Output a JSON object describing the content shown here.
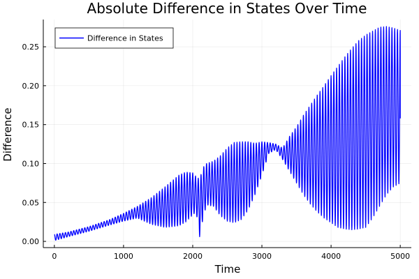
{
  "chart_data": {
    "type": "line",
    "title": "Absolute Difference in States Over Time",
    "xlabel": "Time",
    "ylabel": "Difference",
    "xlim": [
      -160,
      5160
    ],
    "ylim": [
      -0.008,
      0.285
    ],
    "xticks": [
      0,
      1000,
      2000,
      3000,
      4000,
      5000
    ],
    "xtick_labels": [
      "0",
      "1000",
      "2000",
      "3000",
      "4000",
      "5000"
    ],
    "yticks": [
      0.0,
      0.05,
      0.1,
      0.15,
      0.2,
      0.25
    ],
    "ytick_labels": [
      "0.00",
      "0.05",
      "0.10",
      "0.15",
      "0.20",
      "0.25"
    ],
    "grid": true,
    "legend_position": "top-left",
    "oscillation_period": 40,
    "series": [
      {
        "name": "Difference in States",
        "color": "#0000ff",
        "upper_envelope": {
          "x": [
            0,
            200,
            500,
            800,
            1000,
            1200,
            1400,
            1600,
            1800,
            1900,
            2000,
            2050,
            2100,
            2150,
            2200,
            2300,
            2400,
            2500,
            2600,
            2700,
            2800,
            2900,
            3000,
            3100,
            3200,
            3300,
            3400,
            3500,
            3600,
            3700,
            3800,
            3900,
            4000,
            4100,
            4200,
            4300,
            4400,
            4500,
            4600,
            4700,
            4800,
            4900,
            5000
          ],
          "y": [
            0.009,
            0.012,
            0.019,
            0.028,
            0.036,
            0.045,
            0.056,
            0.07,
            0.085,
            0.089,
            0.088,
            0.083,
            0.08,
            0.095,
            0.1,
            0.103,
            0.11,
            0.12,
            0.127,
            0.128,
            0.128,
            0.126,
            0.128,
            0.127,
            0.125,
            0.12,
            0.135,
            0.147,
            0.162,
            0.175,
            0.188,
            0.2,
            0.213,
            0.225,
            0.237,
            0.248,
            0.258,
            0.265,
            0.27,
            0.275,
            0.276,
            0.274,
            0.271
          ]
        },
        "lower_envelope": {
          "x": [
            0,
            200,
            500,
            800,
            1000,
            1200,
            1400,
            1600,
            1800,
            1900,
            2000,
            2050,
            2100,
            2150,
            2200,
            2300,
            2400,
            2500,
            2600,
            2700,
            2800,
            2900,
            3000,
            3100,
            3200,
            3300,
            3400,
            3500,
            3600,
            3700,
            3800,
            3900,
            4000,
            4100,
            4200,
            4300,
            4400,
            4500,
            4600,
            4700,
            4800,
            4900,
            5000
          ],
          "y": [
            0.001,
            0.006,
            0.013,
            0.021,
            0.026,
            0.03,
            0.022,
            0.018,
            0.02,
            0.025,
            0.034,
            0.038,
            0.006,
            0.03,
            0.047,
            0.045,
            0.033,
            0.026,
            0.024,
            0.028,
            0.04,
            0.06,
            0.085,
            0.113,
            0.118,
            0.105,
            0.09,
            0.075,
            0.06,
            0.048,
            0.038,
            0.03,
            0.024,
            0.018,
            0.016,
            0.015,
            0.016,
            0.018,
            0.03,
            0.045,
            0.06,
            0.07,
            0.075
          ]
        },
        "end_value": {
          "x": 5000,
          "y": 0.158
        }
      }
    ]
  }
}
